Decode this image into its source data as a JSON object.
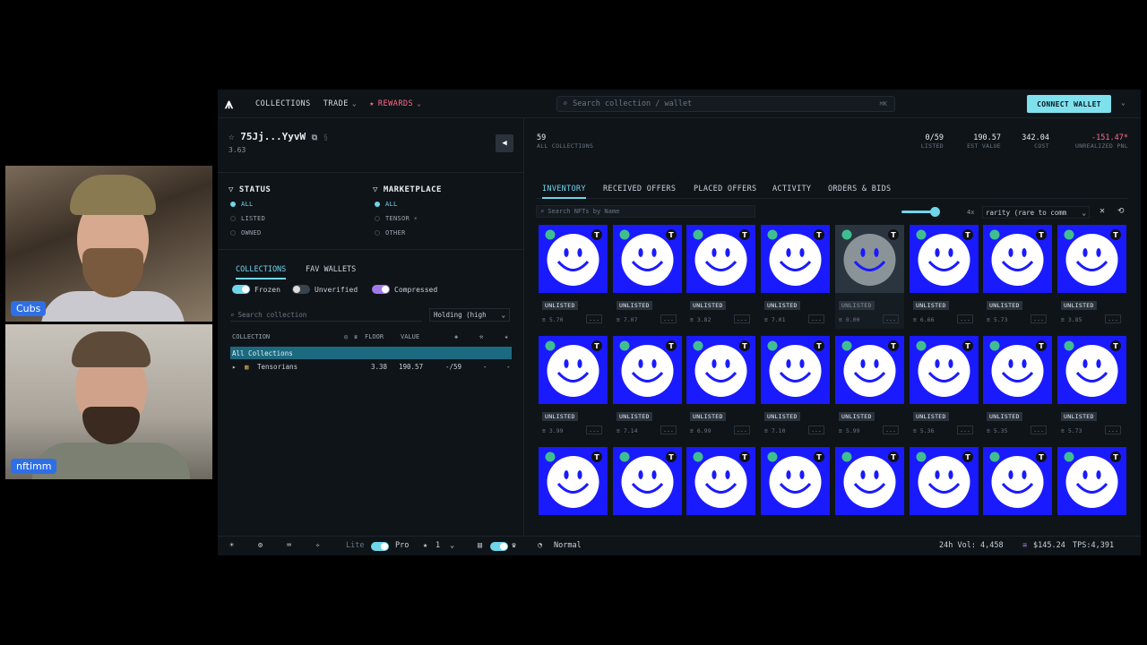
{
  "participants": [
    {
      "name": "Cubs"
    },
    {
      "name": "nftimm"
    }
  ],
  "topbar": {
    "logo": "⩚",
    "nav": [
      {
        "label": "COLLECTIONS"
      },
      {
        "label": "TRADE"
      },
      {
        "label": "REWARDS"
      }
    ],
    "search_placeholder": "Search collection / wallet",
    "search_shortcut": "⌘K",
    "connect_label": "CONNECT WALLET"
  },
  "wallet": {
    "address": "75Jj...YyvW",
    "balance": "3.63"
  },
  "filters": {
    "status_title": "STATUS",
    "status_options": [
      "ALL",
      "LISTED",
      "OWNED"
    ],
    "marketplace_title": "MARKETPLACE",
    "marketplace_options": [
      "ALL",
      "TENSOR ⚡",
      "OTHER"
    ]
  },
  "collections_panel": {
    "tabs": [
      "COLLECTIONS",
      "FAV WALLETS"
    ],
    "toggles": [
      "Frozen",
      "Unverified",
      "Compressed"
    ],
    "search_placeholder": "Search collection",
    "holding_label": "Holding (high",
    "headers": {
      "collection": "COLLECTION",
      "floor": "FLOOR",
      "value": "VALUE"
    },
    "all_label": "All Collections",
    "rows": [
      {
        "name": "Tensorians",
        "floor": "3.38",
        "value": "190.57",
        "listed": "-/59",
        "c1": "-",
        "c2": "-"
      }
    ]
  },
  "stats": {
    "count": "59",
    "count_label": "ALL COLLECTIONS",
    "listed": "0/59",
    "listed_label": "LISTED",
    "est_value": "190.57",
    "est_value_label": "EST VALUE",
    "cost": "342.04",
    "cost_label": "COST",
    "pnl": "-151.47*",
    "pnl_label": "UNREALIZED PNL"
  },
  "right_tabs": [
    "INVENTORY",
    "RECEIVED OFFERS",
    "PLACED OFFERS",
    "ACTIVITY",
    "ORDERS & BIDS"
  ],
  "nft_search_placeholder": "Search NFTs by Name",
  "zoom_label": "4x",
  "sort_label": "rarity (rare to comm",
  "cards": [
    {
      "status": "UNLISTED",
      "price": "5.70"
    },
    {
      "status": "UNLISTED",
      "price": "7.07"
    },
    {
      "status": "UNLISTED",
      "price": "3.82"
    },
    {
      "status": "UNLISTED",
      "price": "7.01"
    },
    {
      "status": "UNLISTED",
      "price": "0.00"
    },
    {
      "status": "UNLISTED",
      "price": "6.66"
    },
    {
      "status": "UNLISTED",
      "price": "5.73"
    },
    {
      "status": "UNLISTED",
      "price": "3.85"
    },
    {
      "status": "UNLISTED",
      "price": "3.99"
    },
    {
      "status": "UNLISTED",
      "price": "7.14"
    },
    {
      "status": "UNLISTED",
      "price": "6.99"
    },
    {
      "status": "UNLISTED",
      "price": "7.10"
    },
    {
      "status": "UNLISTED",
      "price": "5.99"
    },
    {
      "status": "UNLISTED",
      "price": "5.36"
    },
    {
      "status": "UNLISTED",
      "price": "5.35"
    },
    {
      "status": "UNLISTED",
      "price": "5.73"
    },
    {
      "status": "",
      "price": ""
    },
    {
      "status": "",
      "price": ""
    },
    {
      "status": "",
      "price": ""
    },
    {
      "status": "",
      "price": ""
    },
    {
      "status": "",
      "price": ""
    },
    {
      "status": "",
      "price": ""
    },
    {
      "status": "",
      "price": ""
    },
    {
      "status": "",
      "price": ""
    }
  ],
  "card_more": "...",
  "bottombar": {
    "lite": "Lite",
    "pro": "Pro",
    "priority": "1",
    "mode": "Normal",
    "vol": "24h Vol: 4,458",
    "sol_price": "$145.24",
    "tps": "TPS:4,391"
  },
  "colors": {
    "accent": "#6fd6ea",
    "rewards": "#ff6b8a",
    "nft_bg": "#1a1aff",
    "pnl": "#ff6b8a"
  }
}
